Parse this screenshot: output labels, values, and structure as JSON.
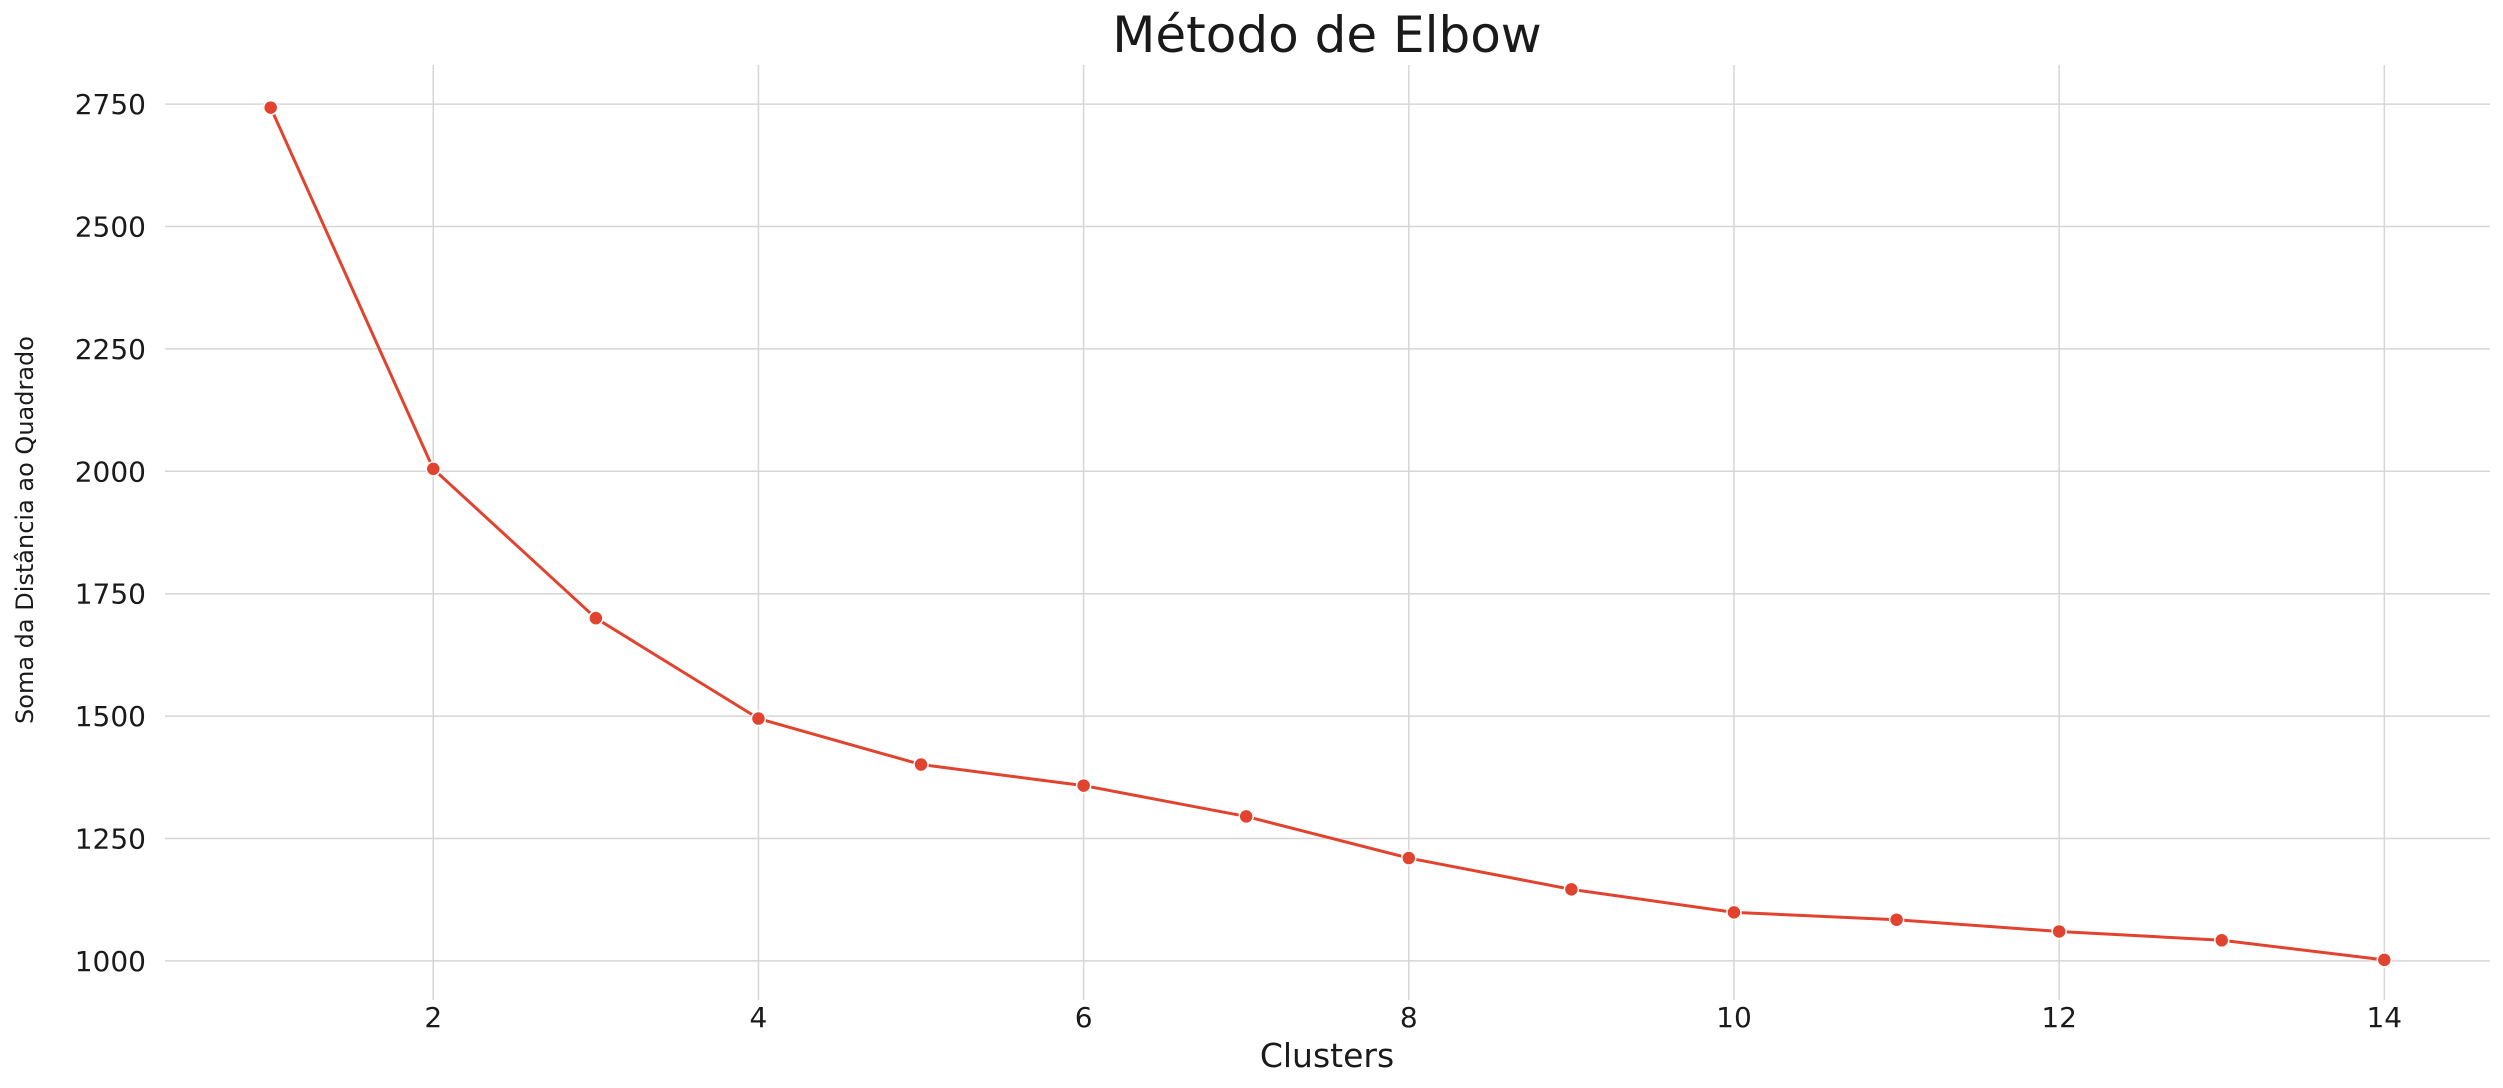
{
  "chart_data": {
    "type": "line",
    "title": "Método de Elbow",
    "xlabel": "Clusters",
    "ylabel": "Soma da Distância ao Quadrado",
    "x": [
      1,
      2,
      3,
      4,
      5,
      6,
      7,
      8,
      9,
      10,
      11,
      12,
      13,
      14
    ],
    "series": [
      {
        "values": [
          2743,
          2005,
          1700,
          1495,
          1401,
          1358,
          1295,
          1210,
          1146,
          1099,
          1084,
          1060,
          1042,
          1002
        ]
      }
    ],
    "xlim": [
      0.35,
      14.65
    ],
    "ylim": [
      920,
      2830
    ],
    "xticks": [
      2,
      4,
      6,
      8,
      10,
      12,
      14
    ],
    "yticks": [
      1000,
      1250,
      1500,
      1750,
      2000,
      2250,
      2500,
      2750
    ],
    "grid": true,
    "line_color": "#e1432e",
    "marker": "circle"
  }
}
